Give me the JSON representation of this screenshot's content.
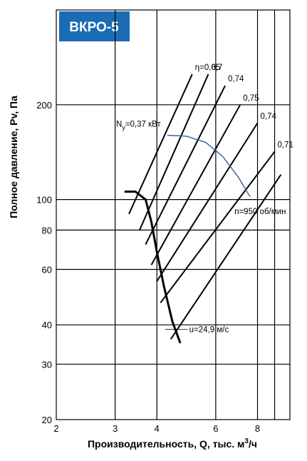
{
  "chart_data": {
    "type": "line",
    "title": "ВКРО-5",
    "xlabel_main": "Производительность, Q, тыс. м",
    "xlabel_sup": "3",
    "xlabel_tail": "/ч",
    "ylabel": "Полное давление, Pv, Па",
    "x_ticks": [
      "2",
      "3",
      "4",
      "6",
      "8"
    ],
    "y_ticks": [
      "20",
      "30",
      "40",
      "60",
      "80",
      "100",
      "200"
    ],
    "x_scale": "log",
    "y_scale": "log",
    "xlim": [
      2,
      10
    ],
    "ylim": [
      20,
      400
    ],
    "grid": true,
    "fan_curve": {
      "x": [
        3.2,
        3.45,
        3.7,
        3.85,
        4.0,
        4.2,
        4.45,
        4.7
      ],
      "y": [
        106,
        106,
        100,
        85,
        68,
        53,
        41,
        35
      ]
    },
    "speed_curve": {
      "label": "n=950 об/мин",
      "x": [
        4.3,
        4.9,
        5.6,
        6.3,
        7.0,
        7.6
      ],
      "y": [
        160,
        159,
        152,
        137,
        118,
        102
      ]
    },
    "power_label": {
      "main": "N",
      "sub": "y",
      "rest": "=0,37 кВт"
    },
    "velocity_label": "u=24,9 м/с",
    "efficiency_lines": [
      {
        "label": "η=0,65",
        "x": [
          3.3,
          5.1
        ],
        "y": [
          90,
          250
        ]
      },
      {
        "label": "0,7",
        "x": [
          3.55,
          5.7
        ],
        "y": [
          80,
          250
        ]
      },
      {
        "label": "0,74",
        "x": [
          3.7,
          6.4
        ],
        "y": [
          72,
          230
        ]
      },
      {
        "label": "0,75",
        "x": [
          3.85,
          7.1
        ],
        "y": [
          62,
          200
        ]
      },
      {
        "label": "0,74",
        "x": [
          4.0,
          8.0
        ],
        "y": [
          55,
          175
        ]
      },
      {
        "label": "0,71",
        "x": [
          4.1,
          9.0
        ],
        "y": [
          47,
          142
        ]
      },
      {
        "label": "",
        "x": [
          4.4,
          9.4
        ],
        "y": [
          36,
          120
        ]
      }
    ]
  }
}
